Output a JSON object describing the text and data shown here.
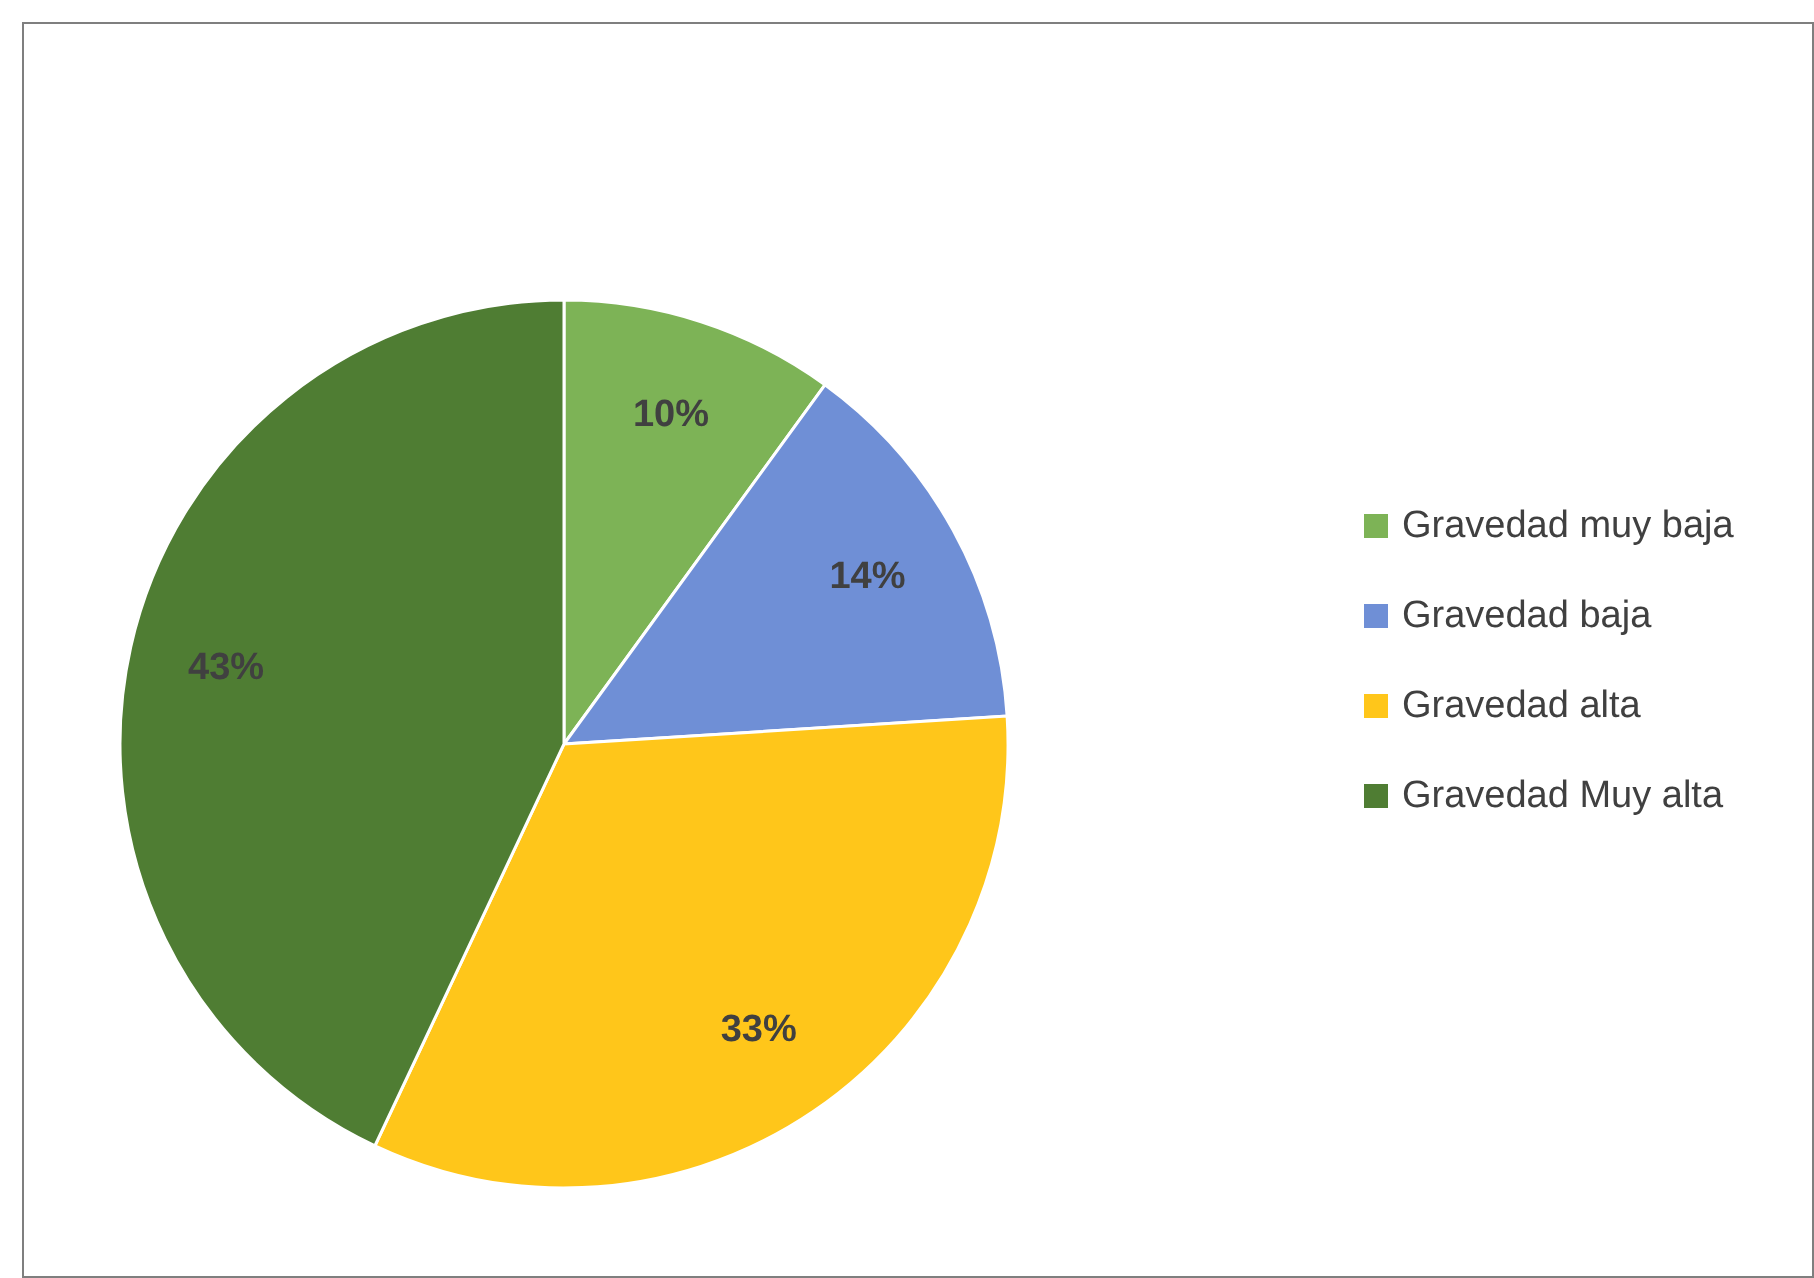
{
  "chart_data": {
    "type": "pie",
    "categories": [
      "Gravedad muy baja",
      "Gravedad baja",
      "Gravedad alta",
      "Gravedad Muy alta"
    ],
    "values": [
      10,
      14,
      33,
      43
    ],
    "colors": [
      "#7db356",
      "#6f8fd6",
      "#ffc61a",
      "#4f7d33"
    ],
    "value_labels": [
      "10%",
      "14%",
      "33%",
      "43%"
    ],
    "legend": "right"
  }
}
